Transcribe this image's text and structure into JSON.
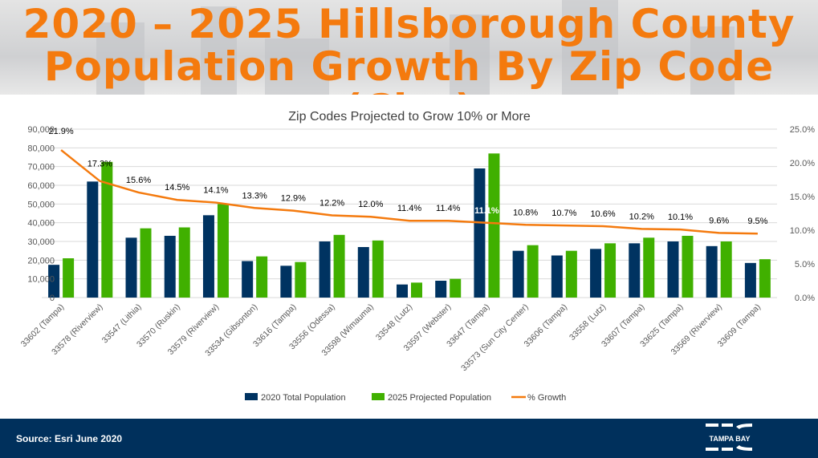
{
  "header": {
    "title_line1": "2020 – 2025 Hillsborough County",
    "title_line2": "Population Growth By Zip Code (City)"
  },
  "footer": {
    "source": "Source:  Esri June 2020",
    "logo_text": "TAMPA BAY",
    "logo_mark": "EDC"
  },
  "colors": {
    "series_2020": "#003361",
    "series_2025": "#40b000",
    "growth_line": "#f47a0e",
    "title": "#f47a0e",
    "footer_bg": "#00305c"
  },
  "chart_data": {
    "type": "bar+line",
    "title": "Zip Codes Projected to Grow 10% or More",
    "categories": [
      "33602 (Tampa)",
      "33578 (Riverview)",
      "33547 (Lithia)",
      "33570 (Ruskin)",
      "33579 (Riverview)",
      "33534 (Gibsonton)",
      "33616 (Tampa)",
      "33556 (Odessa)",
      "33598 (Wimauma)",
      "33548 (Lutz)",
      "33597 (Webster)",
      "33647 (Tampa)",
      "33573 (Sun City Center)",
      "33606 (Tampa)",
      "33558 (Lutz)",
      "33607 (Tampa)",
      "33625 (Tampa)",
      "33569 (Riverview)",
      "33609 (Tampa)"
    ],
    "series": [
      {
        "name": "2020 Total Population",
        "type": "bar",
        "axis": "left",
        "values": [
          17500,
          62000,
          32000,
          33000,
          44000,
          19500,
          17000,
          30000,
          27000,
          7000,
          9000,
          69000,
          25000,
          22500,
          26000,
          29000,
          30000,
          27500,
          18500
        ]
      },
      {
        "name": "2025 Projected Population",
        "type": "bar",
        "axis": "left",
        "values": [
          21000,
          72500,
          37000,
          37500,
          50000,
          22000,
          19000,
          33500,
          30500,
          8000,
          10000,
          77000,
          28000,
          25000,
          29000,
          32000,
          33000,
          30000,
          20500
        ]
      },
      {
        "name": "% Growth",
        "type": "line",
        "axis": "right",
        "values": [
          21.9,
          17.3,
          15.6,
          14.5,
          14.1,
          13.3,
          12.9,
          12.2,
          12.0,
          11.4,
          11.4,
          11.1,
          10.8,
          10.7,
          10.6,
          10.2,
          10.1,
          9.6,
          9.5
        ],
        "labels": [
          "21.9%",
          "17.3%",
          "15.6%",
          "14.5%",
          "14.1%",
          "13.3%",
          "12.9%",
          "12.2%",
          "12.0%",
          "11.4%",
          "11.4%",
          "11.1%",
          "10.8%",
          "10.7%",
          "10.6%",
          "10.2%",
          "10.1%",
          "9.6%",
          "9.5%"
        ]
      }
    ],
    "y_left": {
      "min": 0,
      "max": 90000,
      "ticks": [
        "0",
        "10,000",
        "20,000",
        "30,000",
        "40,000",
        "50,000",
        "60,000",
        "70,000",
        "80,000",
        "90,000"
      ]
    },
    "y_right": {
      "min": 0,
      "max": 25,
      "ticks": [
        "0.0%",
        "5.0%",
        "10.0%",
        "15.0%",
        "20.0%",
        "25.0%"
      ]
    },
    "grid": true,
    "legend": "bottom"
  }
}
